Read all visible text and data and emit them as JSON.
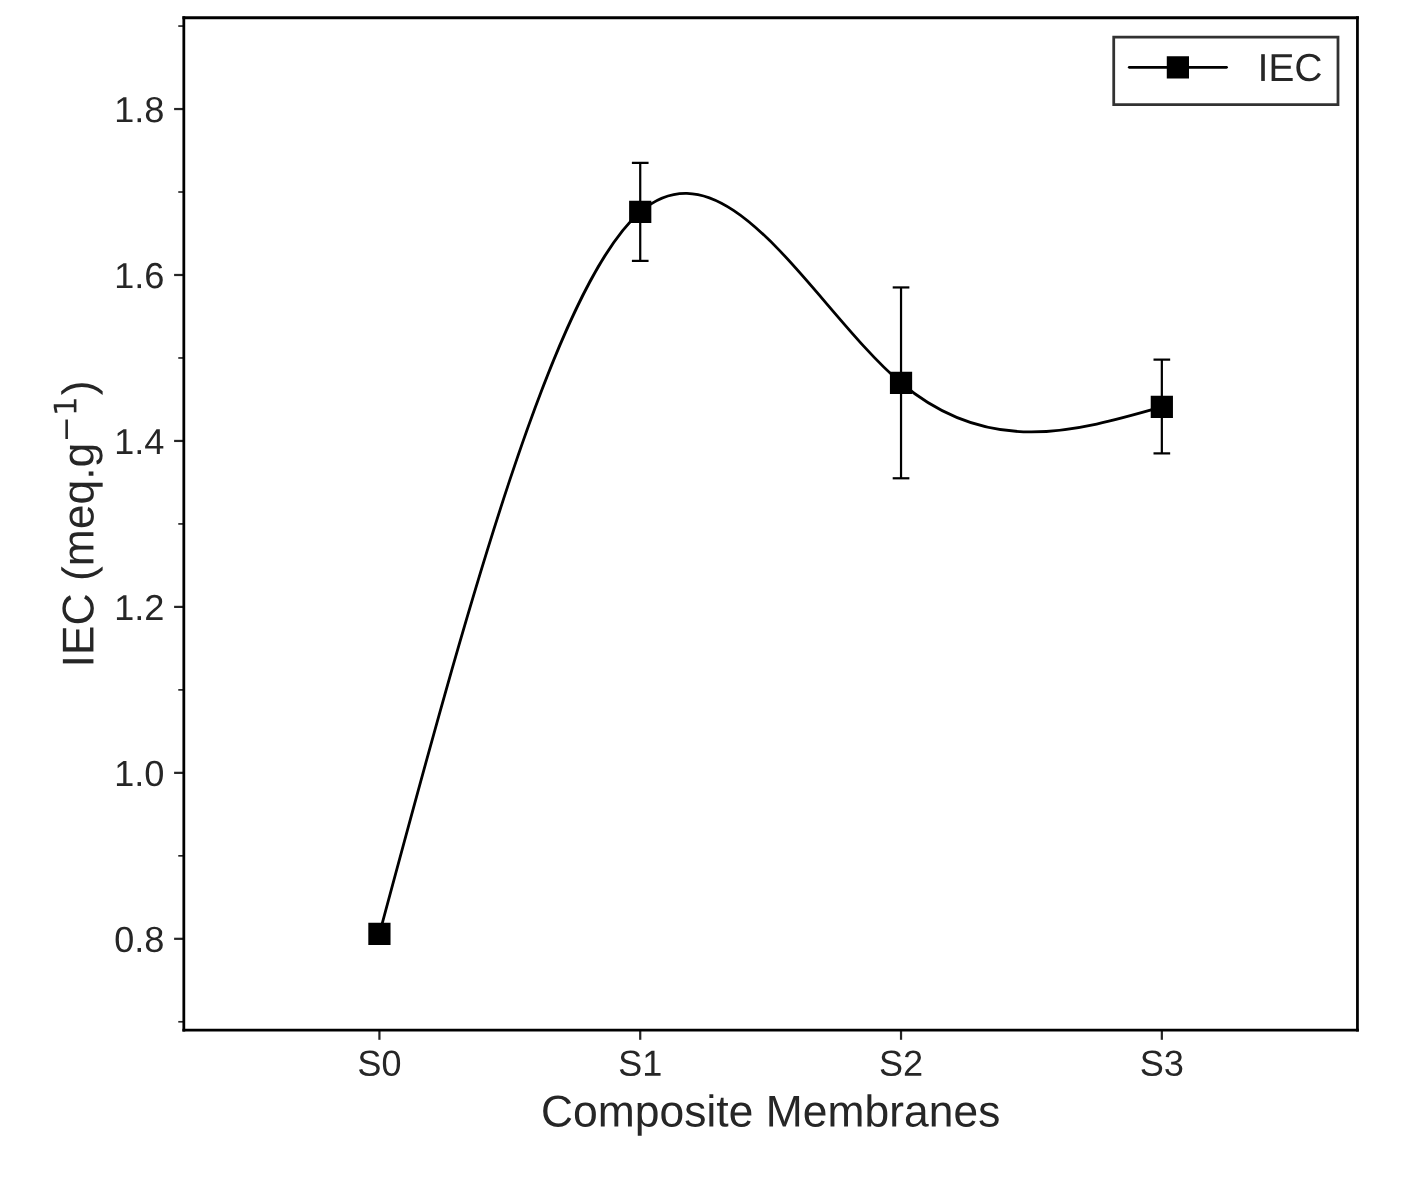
{
  "chart_data": {
    "type": "line",
    "xlabel": "Composite Membranes",
    "ylabel": "IEC (meq.g$^{−1}$)",
    "categories": [
      "S0",
      "S1",
      "S2",
      "S3"
    ],
    "series": [
      {
        "name": "IEC",
        "color": "#000000",
        "values": [
          0.806,
          1.676,
          1.47,
          1.441
        ],
        "errors": [
          null,
          [
            1.617,
            1.735
          ],
          [
            1.355,
            1.585
          ],
          [
            1.385,
            1.498
          ]
        ]
      }
    ],
    "ylim": [
      0.69,
      1.91
    ],
    "yticks": [
      {
        "value": 0.8,
        "label": "0.8"
      },
      {
        "value": 1.0,
        "label": "1.0"
      },
      {
        "value": 1.2,
        "label": "1.2"
      },
      {
        "value": 1.4,
        "label": "1.4"
      },
      {
        "value": 1.6,
        "label": "1.6"
      },
      {
        "value": 1.8,
        "label": "1.8"
      }
    ],
    "marker": "square",
    "line_style": "solid",
    "legend": "top right",
    "grid": false
  }
}
